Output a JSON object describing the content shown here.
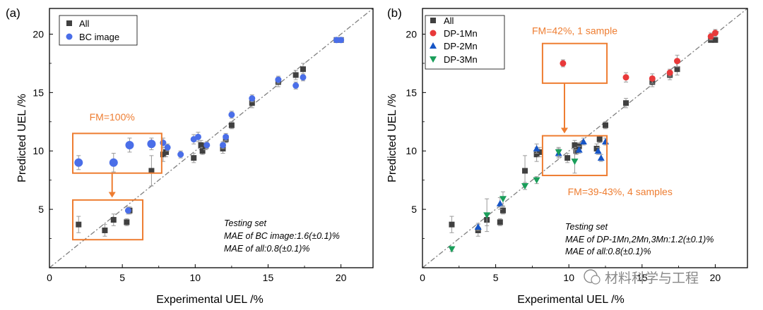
{
  "colors": {
    "all": "#404040",
    "bc": "#4a6ee8",
    "dp1": "#e8393a",
    "dp2": "#1655c6",
    "dp3": "#1a9e5a",
    "annot": "#ee7d31",
    "diag": "#7f7f7f",
    "error": "#9a9a9a",
    "watermark": "#888888"
  },
  "chart_data": [
    {
      "type": "scatter",
      "panel_label": "(a)",
      "xlabel": "Experimental UEL /%",
      "ylabel": "Predicted UEL /%",
      "xlim": [
        0,
        22.2
      ],
      "ylim": [
        0,
        22.2
      ],
      "xticks": [
        "0",
        "5",
        "10",
        "15",
        "20"
      ],
      "yticks": [
        "5",
        "10",
        "15",
        "20"
      ],
      "reference_line": "y = x",
      "legend": [
        {
          "label": "All",
          "series": "all"
        },
        {
          "label": "BC image",
          "series": "bc"
        }
      ],
      "series": [
        {
          "name": "All",
          "key": "all",
          "points": [
            {
              "x": 2.0,
              "y": 3.7,
              "e": 0.7
            },
            {
              "x": 3.8,
              "y": 3.2,
              "e": 0.5
            },
            {
              "x": 4.4,
              "y": 4.1,
              "e": 0.5
            },
            {
              "x": 5.3,
              "y": 3.9,
              "e": 0.3
            },
            {
              "x": 5.5,
              "y": 4.9,
              "e": 0.3
            },
            {
              "x": 7.0,
              "y": 8.3,
              "e": 1.3
            },
            {
              "x": 7.8,
              "y": 9.7,
              "e": 0.6
            },
            {
              "x": 8.0,
              "y": 9.9,
              "e": 0.4
            },
            {
              "x": 9.9,
              "y": 9.4,
              "e": 0.4
            },
            {
              "x": 10.4,
              "y": 10.5,
              "e": 0.4
            },
            {
              "x": 10.5,
              "y": 10.0,
              "e": 0.3
            },
            {
              "x": 10.7,
              "y": 10.4,
              "e": 0.3
            },
            {
              "x": 11.9,
              "y": 10.2,
              "e": 0.4
            },
            {
              "x": 12.1,
              "y": 11.0,
              "e": 0.3
            },
            {
              "x": 12.5,
              "y": 12.2,
              "e": 0.3
            },
            {
              "x": 13.9,
              "y": 14.1,
              "e": 0.4
            },
            {
              "x": 15.7,
              "y": 15.9,
              "e": 0.4
            },
            {
              "x": 16.9,
              "y": 16.5,
              "e": 0.4
            },
            {
              "x": 17.4,
              "y": 17.0,
              "e": 0.5
            },
            {
              "x": 19.7,
              "y": 19.5,
              "e": 0.2
            },
            {
              "x": 20.0,
              "y": 19.5,
              "e": 0.2
            }
          ]
        },
        {
          "name": "BC image",
          "key": "bc",
          "points": [
            {
              "x": 2.0,
              "y": 9.0,
              "e": 0.6
            },
            {
              "x": 4.4,
              "y": 9.0,
              "e": 0.8
            },
            {
              "x": 5.5,
              "y": 10.5,
              "e": 0.6
            },
            {
              "x": 7.0,
              "y": 10.6,
              "e": 0.5
            },
            {
              "x": 5.4,
              "y": 4.9,
              "e": 0.3
            },
            {
              "x": 7.8,
              "y": 10.7,
              "e": 0.4
            },
            {
              "x": 8.1,
              "y": 10.3,
              "e": 0.3
            },
            {
              "x": 9.0,
              "y": 9.7,
              "e": 0.3
            },
            {
              "x": 9.9,
              "y": 11.0,
              "e": 0.4
            },
            {
              "x": 10.2,
              "y": 11.2,
              "e": 0.4
            },
            {
              "x": 10.8,
              "y": 10.5,
              "e": 0.3
            },
            {
              "x": 11.9,
              "y": 10.5,
              "e": 0.3
            },
            {
              "x": 12.1,
              "y": 11.2,
              "e": 0.3
            },
            {
              "x": 12.5,
              "y": 13.1,
              "e": 0.3
            },
            {
              "x": 13.9,
              "y": 14.5,
              "e": 0.3
            },
            {
              "x": 15.7,
              "y": 16.1,
              "e": 0.3
            },
            {
              "x": 16.9,
              "y": 15.6,
              "e": 0.3
            },
            {
              "x": 17.4,
              "y": 16.3,
              "e": 0.3
            },
            {
              "x": 19.7,
              "y": 19.5,
              "e": 0.2
            },
            {
              "x": 20.0,
              "y": 19.5,
              "e": 0.2
            }
          ]
        }
      ],
      "annotations": [
        {
          "text": "FM=100%",
          "box": {
            "x0": 1.6,
            "x1": 7.7,
            "y0": 8.1,
            "y1": 11.5
          },
          "label_at": {
            "x": 4.3,
            "y": 12.6
          }
        },
        {
          "box": {
            "x0": 1.6,
            "x1": 6.4,
            "y0": 2.4,
            "y1": 5.8
          }
        }
      ],
      "arrow": {
        "x": 4.3,
        "from_y": 8.1,
        "to_y": 6.0
      },
      "testing_title": "Testing set",
      "testing_lines": [
        "MAE of BC image:1.6(±0.1)%",
        "MAE of all:0.8(±0.1)%"
      ]
    },
    {
      "type": "scatter",
      "panel_label": "(b)",
      "xlabel": "Experimental UEL /%",
      "ylabel": "Predicted UEL /%",
      "xlim": [
        0,
        22.2
      ],
      "ylim": [
        0,
        22.2
      ],
      "xticks": [
        "0",
        "5",
        "10",
        "15",
        "20"
      ],
      "yticks": [
        "5",
        "10",
        "15",
        "20"
      ],
      "reference_line": "y = x",
      "legend": [
        {
          "label": "All",
          "series": "all"
        },
        {
          "label": "DP-1Mn",
          "series": "dp1"
        },
        {
          "label": "DP-2Mn",
          "series": "dp2"
        },
        {
          "label": "DP-3Mn",
          "series": "dp3"
        }
      ],
      "series": [
        {
          "name": "All",
          "key": "all",
          "points": [
            {
              "x": 2.0,
              "y": 3.7,
              "e": 0.7
            },
            {
              "x": 3.8,
              "y": 3.2,
              "e": 0.5
            },
            {
              "x": 4.4,
              "y": 4.1,
              "e": 0.5
            },
            {
              "x": 5.3,
              "y": 3.9,
              "e": 0.3
            },
            {
              "x": 5.5,
              "y": 4.9,
              "e": 0.3
            },
            {
              "x": 7.0,
              "y": 8.3,
              "e": 1.3
            },
            {
              "x": 7.8,
              "y": 9.7,
              "e": 0.6
            },
            {
              "x": 8.0,
              "y": 9.9,
              "e": 0.4
            },
            {
              "x": 9.9,
              "y": 9.4,
              "e": 0.4
            },
            {
              "x": 10.4,
              "y": 10.5,
              "e": 0.4
            },
            {
              "x": 10.5,
              "y": 10.0,
              "e": 0.3
            },
            {
              "x": 10.7,
              "y": 10.4,
              "e": 0.3
            },
            {
              "x": 11.9,
              "y": 10.2,
              "e": 0.4
            },
            {
              "x": 12.1,
              "y": 11.0,
              "e": 0.3
            },
            {
              "x": 12.5,
              "y": 12.2,
              "e": 0.3
            },
            {
              "x": 13.9,
              "y": 14.1,
              "e": 0.4
            },
            {
              "x": 15.7,
              "y": 15.9,
              "e": 0.4
            },
            {
              "x": 16.9,
              "y": 16.5,
              "e": 0.4
            },
            {
              "x": 17.4,
              "y": 17.0,
              "e": 0.5
            },
            {
              "x": 19.7,
              "y": 19.5,
              "e": 0.2
            },
            {
              "x": 20.0,
              "y": 19.5,
              "e": 0.2
            }
          ]
        },
        {
          "name": "DP-1Mn",
          "key": "dp1",
          "points": [
            {
              "x": 9.6,
              "y": 17.5,
              "e": 0.3
            },
            {
              "x": 13.9,
              "y": 16.3,
              "e": 0.4
            },
            {
              "x": 15.7,
              "y": 16.2,
              "e": 0.4
            },
            {
              "x": 16.9,
              "y": 16.7,
              "e": 0.3
            },
            {
              "x": 17.4,
              "y": 17.7,
              "e": 0.5
            },
            {
              "x": 19.7,
              "y": 19.8,
              "e": 0.3
            },
            {
              "x": 20.0,
              "y": 20.1,
              "e": 0.3
            }
          ]
        },
        {
          "name": "DP-2Mn",
          "key": "dp2",
          "points": [
            {
              "x": 3.8,
              "y": 3.5,
              "e": 0.3
            },
            {
              "x": 5.3,
              "y": 5.5,
              "e": 0.5
            },
            {
              "x": 7.8,
              "y": 10.2,
              "e": 0.4
            },
            {
              "x": 9.3,
              "y": 9.8,
              "e": 0.4
            },
            {
              "x": 10.7,
              "y": 10.1,
              "e": 0.3
            },
            {
              "x": 11.0,
              "y": 10.8,
              "e": 0.3
            },
            {
              "x": 12.0,
              "y": 10.0,
              "e": 0.3
            },
            {
              "x": 12.5,
              "y": 10.8,
              "e": 0.3
            },
            {
              "x": 12.2,
              "y": 9.4,
              "e": 0.3
            }
          ]
        },
        {
          "name": "DP-3Mn",
          "key": "dp3",
          "points": [
            {
              "x": 2.0,
              "y": 1.6,
              "e": 0.2
            },
            {
              "x": 4.4,
              "y": 4.5,
              "e": 1.4
            },
            {
              "x": 5.5,
              "y": 5.9,
              "e": 0.6
            },
            {
              "x": 7.0,
              "y": 7.0,
              "e": 0.3
            },
            {
              "x": 7.8,
              "y": 7.5,
              "e": 0.3
            },
            {
              "x": 9.3,
              "y": 9.9,
              "e": 0.4
            },
            {
              "x": 10.4,
              "y": 9.1,
              "e": 1.0
            }
          ]
        }
      ],
      "annotations": [
        {
          "text": "FM=42%, 1 sample",
          "box": {
            "x0": 8.2,
            "x1": 12.6,
            "y0": 15.8,
            "y1": 19.2
          },
          "label_at": {
            "x": 10.4,
            "y": 20.0
          }
        },
        {
          "text": "FM=39-43%, 4 samples",
          "box": {
            "x0": 8.2,
            "x1": 12.6,
            "y0": 7.9,
            "y1": 11.3
          },
          "label_at": {
            "x": 13.5,
            "y": 6.2
          }
        }
      ],
      "arrow": {
        "x": 9.7,
        "from_y": 15.8,
        "to_y": 11.5
      },
      "testing_title": "Testing set",
      "testing_lines": [
        "MAE of DP-1Mn,2Mn,3Mn:1.2(±0.1)%",
        "MAE of all:0.8(±0.1)%"
      ],
      "watermark": "材料科学与工程"
    }
  ]
}
